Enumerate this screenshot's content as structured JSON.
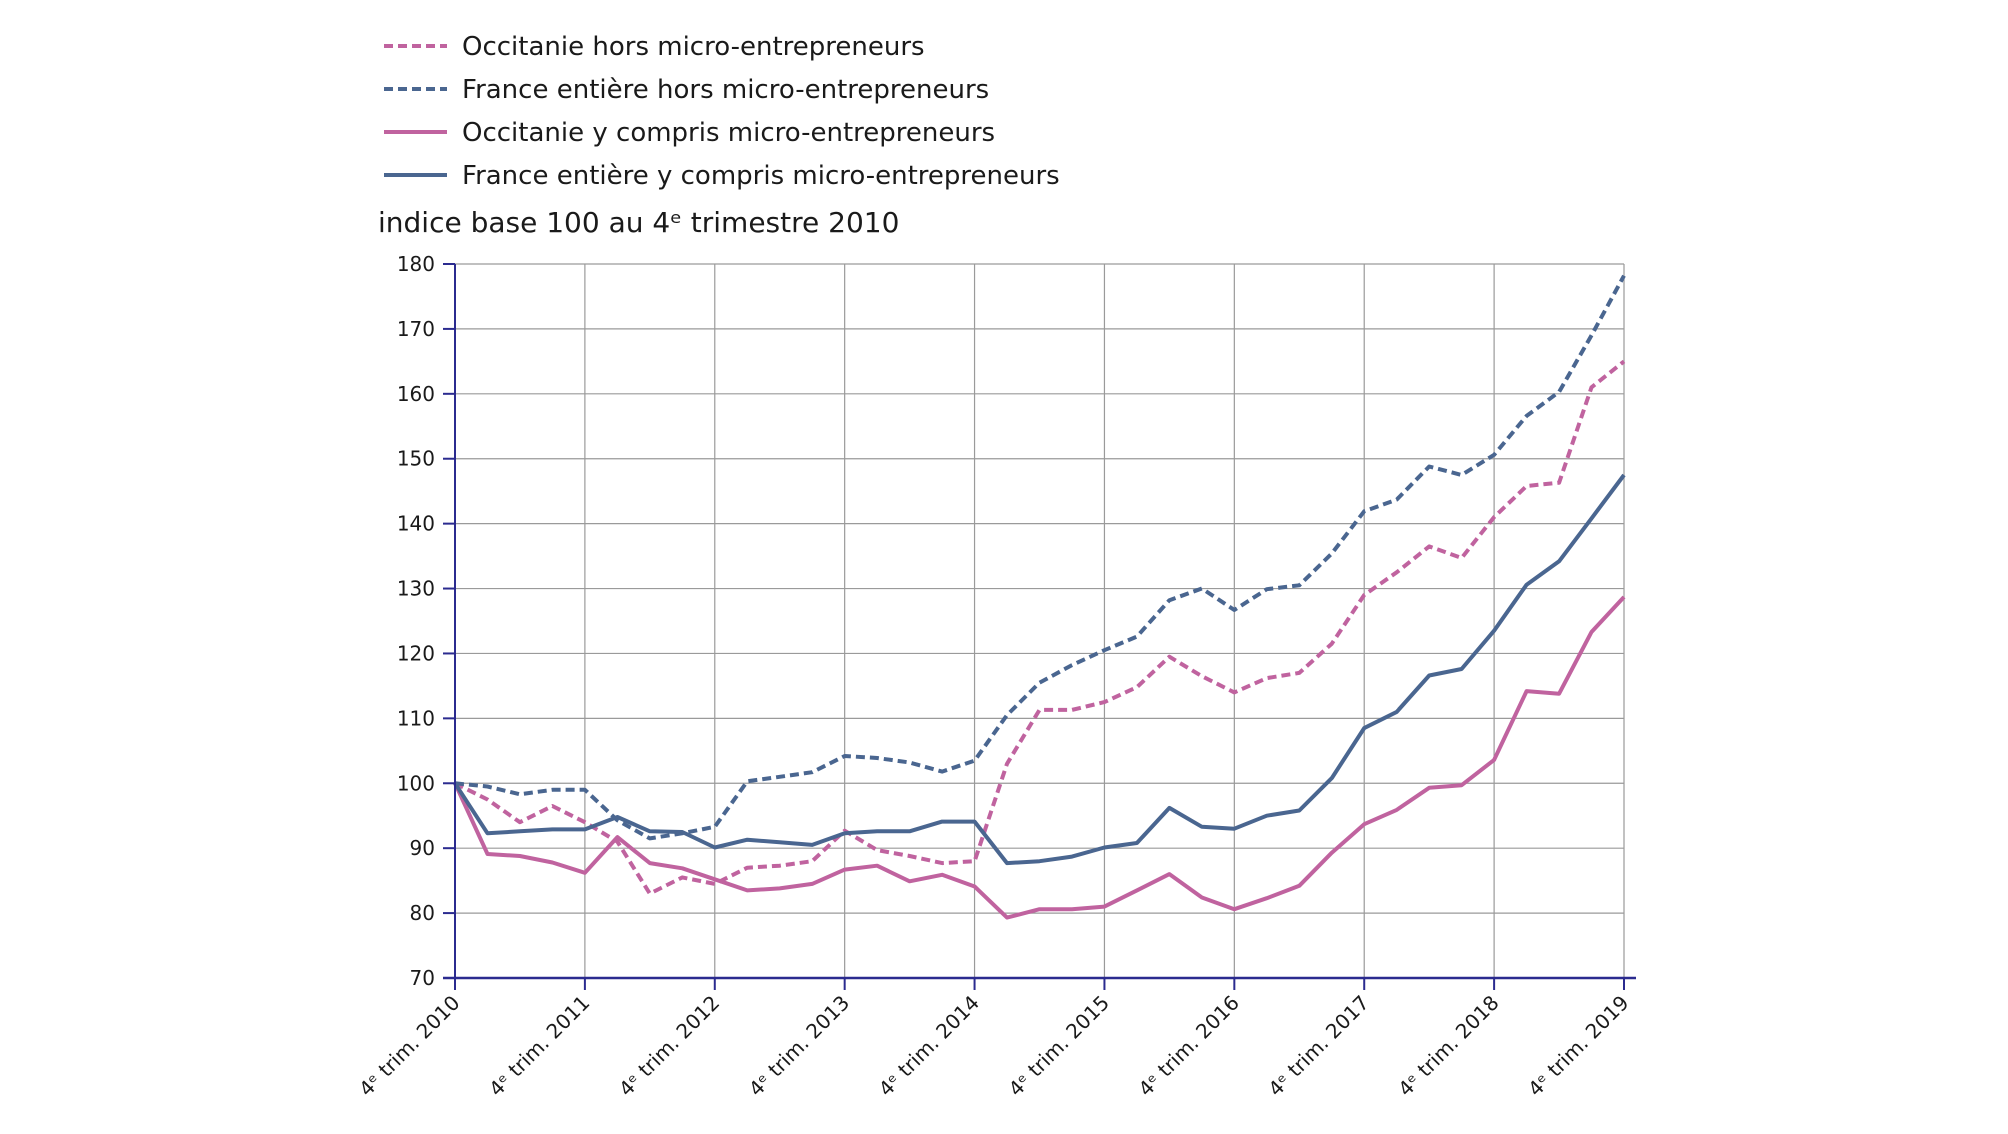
{
  "chart_data": {
    "type": "line",
    "unit_label": "indice base 100 au 4ᵉ trimestre 2010",
    "ylim": [
      70,
      180
    ],
    "yticks": [
      70,
      80,
      90,
      100,
      110,
      120,
      130,
      140,
      150,
      160,
      170,
      180
    ],
    "x_start_quarter": "4ᵉ trim. 2010",
    "x_ticks": [
      "4ᵉ trim. 2010",
      "4ᵉ trim. 2011",
      "4ᵉ trim. 2012",
      "4ᵉ trim. 2013",
      "4ᵉ trim. 2014",
      "4ᵉ trim. 2015",
      "4ᵉ trim. 2016",
      "4ᵉ trim. 2017",
      "4ᵉ trim. 2018",
      "4ᵉ trim. 2019"
    ],
    "quarters_between_ticks": 4,
    "grid": true,
    "legend_position": "top-left",
    "series": [
      {
        "name": "Occitanie hors micro-entrepreneurs",
        "color": "#c0639f",
        "dashed": true,
        "values": [
          100,
          97.5,
          94,
          96.5,
          94,
          91,
          83,
          85.5,
          84.5,
          87,
          87.3,
          88,
          92.7,
          89.7,
          88.8,
          87.7,
          88,
          103,
          111.3,
          111.3,
          112.5,
          114.8,
          119.5,
          116.5,
          114,
          116.2,
          117,
          121.5,
          129,
          132.5,
          136.5,
          134.7,
          141,
          145.8,
          146.3,
          161,
          165
        ]
      },
      {
        "name": "France entière hors micro-entrepreneurs",
        "color": "#4a6690",
        "dashed": true,
        "values": [
          100,
          99.5,
          98.3,
          99,
          99,
          94.3,
          91.5,
          92.3,
          93.3,
          100.3,
          101,
          101.7,
          104.2,
          103.9,
          103.2,
          101.8,
          103.5,
          110.5,
          115.5,
          118.2,
          120.5,
          122.6,
          128.2,
          130,
          126.7,
          129.9,
          130.5,
          135.4,
          141.9,
          143.7,
          148.8,
          147.5,
          150.6,
          156.6,
          160.3,
          169,
          178.2
        ]
      },
      {
        "name": "Occitanie y compris micro-entrepreneurs",
        "color": "#c0639f",
        "dashed": false,
        "values": [
          100,
          89.1,
          88.8,
          87.8,
          86.2,
          91.7,
          87.7,
          86.9,
          85.2,
          83.5,
          83.8,
          84.5,
          86.7,
          87.3,
          84.9,
          85.9,
          84.1,
          79.3,
          80.6,
          80.6,
          81,
          83.5,
          86,
          82.4,
          80.6,
          82.3,
          84.2,
          89.3,
          93.7,
          95.9,
          99.3,
          99.7,
          103.6,
          114.2,
          113.8,
          123.3,
          128.7
        ]
      },
      {
        "name": "France entière y compris micro-entrepreneurs",
        "color": "#4a6690",
        "dashed": false,
        "values": [
          100,
          92.3,
          92.6,
          92.9,
          92.9,
          94.8,
          92.6,
          92.5,
          90.1,
          91.3,
          90.9,
          90.5,
          92.3,
          92.6,
          92.6,
          94.1,
          94.1,
          87.7,
          88,
          88.7,
          90.1,
          90.8,
          96.2,
          93.3,
          93,
          95,
          95.8,
          100.8,
          108.5,
          111,
          116.6,
          117.6,
          123.5,
          130.6,
          134.2,
          140.8,
          147.5
        ]
      }
    ]
  }
}
